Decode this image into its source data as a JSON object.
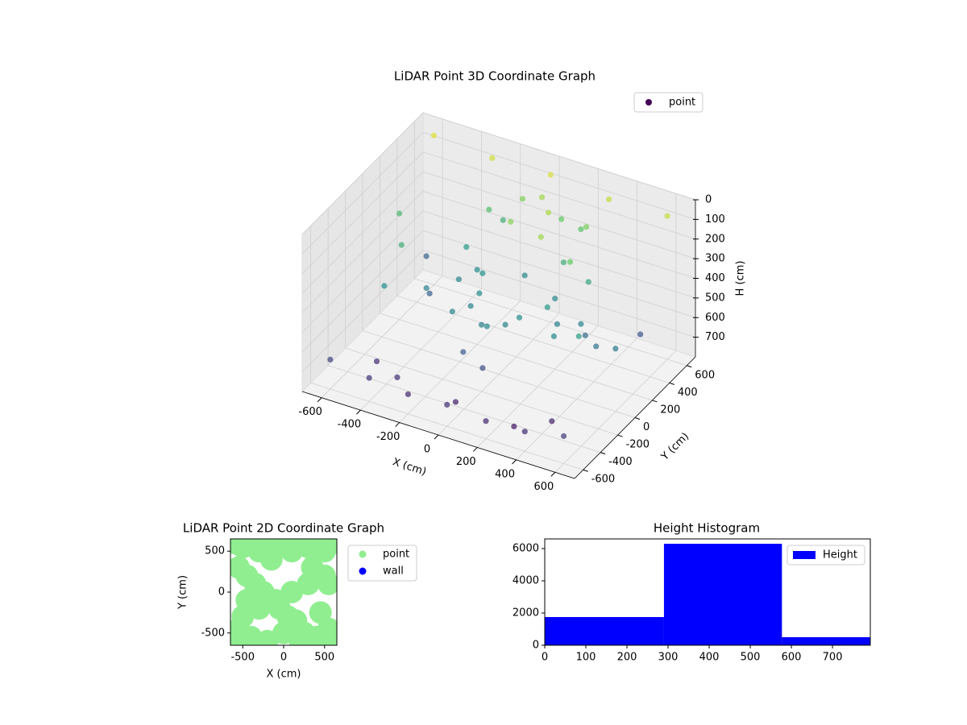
{
  "chart_data": [
    {
      "type": "scatter3d",
      "title": "LiDAR Point 3D Coordinate Graph",
      "xlabel": "X (cm)",
      "ylabel": "Y (cm)",
      "zlabel": "H (cm)",
      "xlim": [
        -700,
        700
      ],
      "ylim": [
        -700,
        700
      ],
      "zlim": [
        0,
        800
      ],
      "z_inverted": true,
      "xticks": [
        -600,
        -400,
        -200,
        0,
        200,
        400,
        600
      ],
      "yticks": [
        -600,
        -400,
        -200,
        0,
        200,
        400,
        600
      ],
      "zticks": [
        0,
        100,
        200,
        300,
        400,
        500,
        600,
        700
      ],
      "colormap": "viridis",
      "grid": true,
      "legend": "upper right",
      "series": [
        {
          "name": "point",
          "color": "#440154",
          "x": [
            -600,
            -400,
            -200,
            0,
            200,
            400,
            600,
            -600,
            -300,
            0,
            300,
            600,
            -500,
            -100,
            300,
            500,
            -200,
            0,
            200,
            -100,
            100,
            0,
            150,
            250,
            300,
            -50,
            -250,
            -350,
            -150,
            50,
            350,
            400,
            200,
            100,
            -300,
            -450,
            450,
            550,
            -550,
            600,
            -600,
            500,
            -500,
            0,
            100,
            -100,
            200,
            -200,
            300,
            -300,
            0,
            250,
            -250,
            400,
            -400,
            150,
            -150,
            50,
            -50,
            350
          ],
          "y": [
            -600,
            -600,
            -600,
            -600,
            -600,
            -600,
            -600,
            600,
            600,
            600,
            600,
            600,
            0,
            0,
            0,
            0,
            200,
            300,
            200,
            -100,
            -150,
            -200,
            -100,
            0,
            150,
            250,
            100,
            -50,
            -200,
            -250,
            -150,
            50,
            300,
            350,
            300,
            -400,
            -400,
            400,
            400,
            0,
            200,
            -200,
            -200,
            500,
            500,
            500,
            500,
            500,
            -500,
            -500,
            -500,
            450,
            450,
            100,
            100,
            150,
            150,
            -300,
            -300,
            250
          ],
          "z": [
            650,
            680,
            700,
            690,
            710,
            700,
            660,
            40,
            60,
            50,
            80,
            70,
            300,
            420,
            450,
            500,
            420,
            430,
            440,
            440,
            450,
            460,
            420,
            380,
            200,
            150,
            440,
            450,
            440,
            430,
            430,
            440,
            300,
            100,
            380,
            700,
            720,
            600,
            550,
            480,
            260,
            360,
            420,
            120,
            200,
            160,
            220,
            300,
            750,
            690,
            720,
            170,
            240,
            520,
            560,
            120,
            400,
            620,
            570,
            330
          ],
          "values": [
            650,
            680,
            700,
            690,
            710,
            700,
            660,
            40,
            60,
            50,
            80,
            70,
            300,
            420,
            450,
            500,
            420,
            430,
            440,
            440,
            450,
            460,
            420,
            380,
            200,
            150,
            440,
            450,
            440,
            430,
            430,
            440,
            300,
            100,
            380,
            700,
            720,
            600,
            550,
            480,
            260,
            360,
            420,
            120,
            200,
            160,
            220,
            300,
            750,
            690,
            720,
            170,
            240,
            520,
            560,
            120,
            400,
            620,
            570,
            330
          ]
        }
      ]
    },
    {
      "type": "scatter",
      "title": "LiDAR Point 2D Coordinate Graph",
      "xlabel": "X (cm)",
      "ylabel": "Y (cm)",
      "xlim": [
        -650,
        650
      ],
      "ylim": [
        -650,
        650
      ],
      "xticks": [
        -500,
        0,
        500
      ],
      "yticks": [
        -500,
        0,
        500
      ],
      "legend": "outside right",
      "series": [
        {
          "name": "point",
          "color": "#90ee90",
          "x": [
            -600,
            -500,
            -400,
            -300,
            -200,
            -100,
            0,
            100,
            200,
            300,
            400,
            500,
            600,
            -550,
            -450,
            -350,
            -250,
            -150,
            -50,
            50,
            150,
            250,
            350,
            450,
            550,
            -600,
            -400,
            -200,
            0,
            200,
            400,
            600,
            -500,
            -300,
            -100,
            100,
            300,
            500,
            -550,
            550,
            -150,
            150,
            -450,
            450
          ],
          "y": [
            600,
            550,
            600,
            500,
            600,
            550,
            600,
            500,
            600,
            550,
            600,
            500,
            600,
            300,
            200,
            100,
            0,
            -100,
            -200,
            -300,
            -400,
            -500,
            300,
            200,
            100,
            -600,
            -550,
            -600,
            -500,
            -600,
            -550,
            -600,
            -300,
            -200,
            -100,
            0,
            100,
            200,
            -450,
            -450,
            400,
            -350,
            -100,
            -250
          ],
          "values": [
            600,
            550,
            600,
            500,
            600,
            550,
            600,
            500,
            600,
            550,
            600,
            500,
            600,
            300,
            200,
            100,
            0,
            -100,
            -200,
            -300,
            -400,
            -500,
            300,
            200,
            100,
            -600,
            -550,
            -600,
            -500,
            -600,
            -550,
            -600,
            -300,
            -200,
            -100,
            0,
            100,
            200,
            -450,
            -450,
            400,
            -350,
            -100,
            -250
          ]
        },
        {
          "name": "wall",
          "color": "#0000ff",
          "x": [],
          "y": [],
          "values": []
        }
      ]
    },
    {
      "type": "histogram",
      "title": "Height Histogram",
      "xlim": [
        0,
        792
      ],
      "ylim": [
        0,
        6600
      ],
      "xticks": [
        0,
        100,
        200,
        300,
        400,
        500,
        600,
        700
      ],
      "yticks": [
        0,
        2000,
        4000,
        6000
      ],
      "legend": "upper right",
      "series": [
        {
          "name": "Height",
          "color": "#0000ff",
          "bins": [
            0,
            290,
            577,
            792
          ],
          "values": [
            1750,
            6300,
            500
          ]
        }
      ]
    }
  ]
}
